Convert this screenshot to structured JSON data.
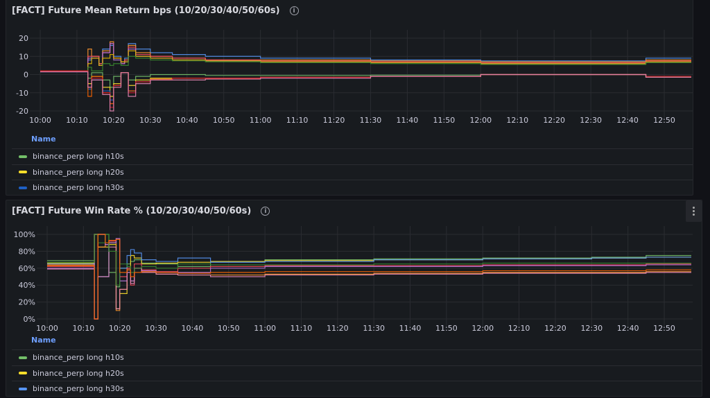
{
  "colors": {
    "green": "#73BF69",
    "yellow": "#FADE2A",
    "blue": "#5794F2",
    "orange": "#FF9830",
    "red": "#F2495C",
    "purple": "#B877D9",
    "pink": "#E687B5",
    "dgreen": "#37872D",
    "dyellow": "#E0B400",
    "dblue": "#1F60C4",
    "dorange": "#FA6400",
    "dred": "#C4162A",
    "link": "#6e9fff"
  },
  "legend_header": "Name",
  "panel_menu_icon": "kebab-menu-icon",
  "chart_data": [
    {
      "type": "line",
      "title": "[FACT] Future Mean Return bps (10/20/30/40/50/60s)",
      "x": [
        "10:00",
        "10:12",
        "10:13",
        "10:14",
        "10:16",
        "10:17",
        "10:19",
        "10:20",
        "10:22",
        "10:23",
        "10:24",
        "10:26",
        "10:30",
        "10:36",
        "10:45",
        "11:00",
        "11:30",
        "12:00",
        "12:30",
        "12:44",
        "12:45",
        "12:57"
      ],
      "xticks": [
        "10:00",
        "10:10",
        "10:20",
        "10:30",
        "10:40",
        "10:50",
        "11:00",
        "11:10",
        "11:20",
        "11:30",
        "11:40",
        "11:50",
        "12:00",
        "12:10",
        "12:20",
        "12:30",
        "12:40",
        "12:50"
      ],
      "yticks": [
        20,
        10,
        0,
        -10,
        -20
      ],
      "ylim": [
        -25,
        25
      ],
      "ytick_suffix": "",
      "grid": true,
      "legend": "bottom",
      "series": [
        {
          "color": "blue",
          "values": [
            2,
            2,
            8,
            10,
            6,
            14,
            16,
            10,
            7,
            9,
            17,
            14,
            12,
            11,
            10,
            9,
            8,
            7.5,
            7.5,
            7.5,
            9,
            9
          ]
        },
        {
          "color": "orange",
          "values": [
            2,
            2,
            14,
            10,
            6,
            13,
            18,
            9,
            7,
            8,
            16,
            12,
            10,
            9,
            8,
            8,
            7.5,
            7,
            7,
            7,
            8,
            8
          ]
        },
        {
          "color": "red",
          "values": [
            2,
            2,
            10,
            10,
            6,
            12,
            17,
            9,
            6,
            8,
            15,
            11,
            10,
            9,
            8,
            7.5,
            7,
            6.5,
            6.5,
            6.5,
            7.5,
            7.5
          ]
        },
        {
          "color": "purple",
          "values": [
            1.5,
            1.5,
            9,
            9,
            5,
            12,
            17,
            8,
            6,
            7,
            14,
            10,
            9,
            8,
            7.5,
            7,
            6.5,
            6,
            6,
            6,
            7,
            7
          ]
        },
        {
          "color": "dyellow",
          "values": [
            2,
            2,
            6,
            9,
            5,
            9,
            11,
            9,
            7,
            7,
            13,
            10,
            9,
            8,
            7.5,
            7,
            6.5,
            6,
            6,
            6,
            7,
            7
          ]
        },
        {
          "color": "dgreen",
          "values": [
            2,
            2,
            4,
            2,
            2,
            6,
            5,
            6,
            5,
            5,
            10,
            9,
            8,
            7.5,
            7,
            6.5,
            6,
            5.5,
            5.5,
            5.5,
            6.5,
            6.5
          ]
        },
        {
          "name": "binance_perp long h10s",
          "color": "green",
          "values": [
            2,
            2,
            -2,
            1,
            1,
            -3,
            -7,
            -1,
            1,
            1,
            -3,
            -1,
            0,
            0,
            -0.5,
            -0.5,
            -0.3,
            0,
            0,
            0,
            -1,
            -1
          ]
        },
        {
          "name": "binance_perp long h20s",
          "color": "yellow",
          "values": [
            2,
            2,
            -5,
            -1,
            -1,
            -7,
            -12,
            -5,
            1,
            1,
            -6,
            -3,
            -2,
            -2,
            -2,
            -1.5,
            -1,
            0,
            0,
            0,
            -1.5,
            -1.5
          ]
        },
        {
          "name": "binance_perp long h30s",
          "color": "dblue",
          "values": [
            2,
            2,
            -8,
            -3,
            -3,
            -9,
            -14,
            -6,
            1,
            1,
            -9,
            -4,
            -2.5,
            -2,
            -2,
            -1.5,
            -1,
            0,
            0,
            0,
            -1.5,
            -1.5
          ]
        },
        {
          "color": "dorange",
          "values": [
            2,
            2,
            -12,
            -1,
            -1,
            -10,
            -16,
            -6,
            1,
            1,
            -9,
            -4,
            -2.5,
            -2,
            -2,
            -1.5,
            -1,
            0,
            0,
            0,
            -1.5,
            -1.5
          ]
        },
        {
          "color": "dred",
          "values": [
            2,
            2,
            -7,
            -2,
            -2,
            -10,
            -18,
            -6,
            1,
            1,
            -10,
            -4,
            -3,
            -2,
            -2,
            -1.5,
            -1,
            0,
            0,
            0,
            -1,
            -1
          ]
        },
        {
          "color": "pink",
          "values": [
            1.5,
            1.5,
            -7,
            -3,
            -3,
            -11,
            -20,
            -7,
            1,
            1,
            -12,
            -5,
            -3,
            -3,
            -2.5,
            -2,
            -1,
            0,
            0,
            0,
            -1.5,
            -1.5
          ]
        }
      ]
    },
    {
      "type": "line",
      "title": "[FACT] Future Win Rate % (10/20/30/40/50/60s)",
      "x": [
        "10:00",
        "10:12",
        "10:13",
        "10:14",
        "10:16",
        "10:17",
        "10:19",
        "10:20",
        "10:22",
        "10:23",
        "10:24",
        "10:26",
        "10:30",
        "10:36",
        "10:45",
        "11:00",
        "11:30",
        "12:00",
        "12:30",
        "12:44",
        "12:45",
        "12:57"
      ],
      "xticks": [
        "10:00",
        "10:10",
        "10:20",
        "10:30",
        "10:40",
        "10:50",
        "11:00",
        "11:10",
        "11:20",
        "11:30",
        "11:40",
        "11:50",
        "12:00",
        "12:10",
        "12:20",
        "12:30",
        "12:40",
        "12:50"
      ],
      "yticks": [
        100,
        80,
        60,
        40,
        20,
        0
      ],
      "ylim": [
        0,
        100
      ],
      "ytick_suffix": "%",
      "grid": true,
      "legend": "bottom",
      "series": [
        {
          "name": "binance_perp long h10s",
          "color": "green",
          "values": [
            69,
            69,
            100,
            100,
            100,
            55,
            38,
            60,
            65,
            68,
            70,
            66,
            65,
            62,
            68,
            70,
            71,
            72,
            73,
            73,
            75,
            75
          ]
        },
        {
          "name": "binance_perp long h20s",
          "color": "yellow",
          "values": [
            66,
            66,
            100,
            85,
            85,
            88,
            12,
            30,
            60,
            75,
            72,
            65,
            66,
            67,
            68,
            69,
            70,
            71,
            72,
            72,
            73,
            73
          ]
        },
        {
          "name": "binance_perp long h30s",
          "color": "blue",
          "values": [
            65,
            65,
            0,
            50,
            50,
            90,
            95,
            60,
            75,
            82,
            78,
            70,
            68,
            72,
            67,
            68,
            70,
            71,
            72,
            72,
            73,
            73
          ]
        },
        {
          "color": "orange",
          "values": [
            64,
            64,
            100,
            85,
            88,
            90,
            10,
            35,
            55,
            45,
            60,
            55,
            53,
            52,
            52,
            53,
            54,
            55,
            55,
            55,
            56,
            56
          ]
        },
        {
          "color": "red",
          "values": [
            62,
            62,
            0,
            100,
            88,
            92,
            95,
            50,
            60,
            40,
            65,
            58,
            56,
            60,
            62,
            63,
            63,
            64,
            64,
            64,
            65,
            65
          ]
        },
        {
          "color": "purple",
          "values": [
            60,
            60,
            100,
            100,
            88,
            90,
            95,
            45,
            55,
            45,
            60,
            57,
            55,
            55,
            60,
            62,
            62,
            63,
            63,
            63,
            64,
            64
          ]
        },
        {
          "color": "pink",
          "values": [
            59,
            59,
            0,
            50,
            50,
            85,
            12,
            35,
            58,
            42,
            60,
            55,
            53,
            52,
            50,
            52,
            53,
            54,
            54,
            54,
            55,
            55
          ]
        },
        {
          "color": "dgreen",
          "values": [
            67,
            67,
            100,
            90,
            100,
            80,
            40,
            65,
            62,
            55,
            60,
            62,
            60,
            65,
            64,
            64,
            65,
            66,
            66,
            66,
            66,
            66
          ]
        },
        {
          "color": "dorange",
          "values": [
            63,
            63,
            0,
            100,
            90,
            93,
            94,
            55,
            58,
            50,
            55,
            56,
            55,
            54,
            55,
            56,
            56,
            57,
            57,
            57,
            58,
            58
          ]
        }
      ]
    }
  ]
}
